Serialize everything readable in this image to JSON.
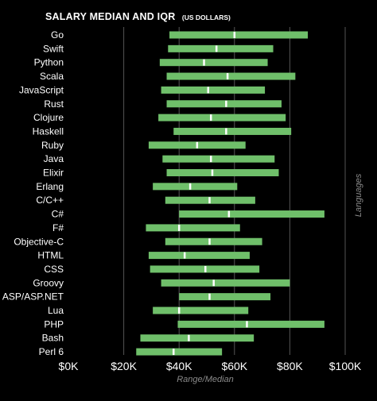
{
  "chart_data": {
    "type": "bar",
    "title": "SALARY MEDIAN AND IQR",
    "title_unit": "(US DOLLARS)",
    "xlabel": "Range/Median",
    "ylabel": "Languages",
    "xlim": [
      0,
      100000
    ],
    "xticks": [
      0,
      20000,
      40000,
      60000,
      80000,
      100000
    ],
    "xtick_labels": [
      "$0K",
      "$20K",
      "$40K",
      "$60K",
      "$80K",
      "$100K"
    ],
    "grid": true,
    "colors": {
      "background": "#000000",
      "bar": "#6fbf6a",
      "median": "#ffffff",
      "grid": "#555555"
    },
    "categories": [
      "Go",
      "Swift",
      "Python",
      "Scala",
      "JavaScript",
      "Rust",
      "Clojure",
      "Haskell",
      "Ruby",
      "Java",
      "Elixir",
      "Erlang",
      "C/C++",
      "C#",
      "F#",
      "Objective-C",
      "HTML",
      "CSS",
      "Groovy",
      "ASP/ASP.NET",
      "Lua",
      "PHP",
      "Bash",
      "Perl 6"
    ],
    "series": [
      {
        "type": "iqr",
        "q1": [
          36500,
          36000,
          33000,
          35500,
          33500,
          35500,
          32500,
          38000,
          29000,
          34000,
          35500,
          30500,
          35000,
          40000,
          28000,
          35000,
          29000,
          29500,
          33500,
          40000,
          30500,
          39500,
          26000,
          24500
        ],
        "median": [
          60000,
          53500,
          49000,
          57500,
          50500,
          57000,
          51500,
          57000,
          46500,
          51500,
          52000,
          44000,
          51000,
          58000,
          40000,
          51000,
          42000,
          49500,
          52500,
          51000,
          40000,
          64500,
          43500,
          38000
        ],
        "q3": [
          86500,
          74000,
          72000,
          82000,
          71000,
          77000,
          78500,
          80500,
          64000,
          74500,
          76000,
          61000,
          67500,
          92500,
          62000,
          70000,
          65500,
          69000,
          80000,
          73000,
          65000,
          92500,
          67000,
          55500
        ]
      }
    ]
  }
}
